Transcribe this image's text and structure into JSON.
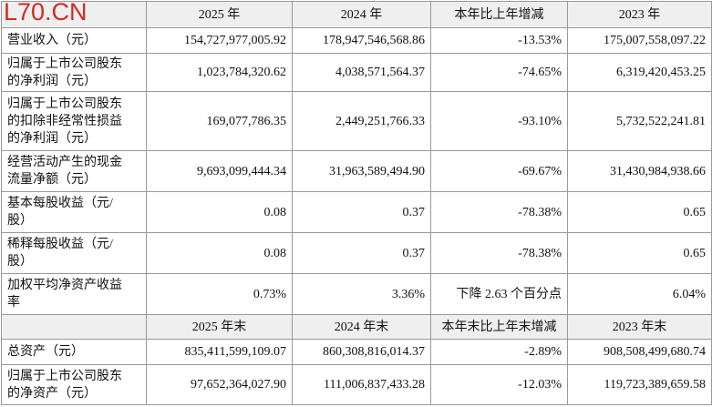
{
  "watermark": "L70.CN",
  "table": {
    "header": [
      "2025 年",
      "2024 年",
      "本年比上年增减",
      "2023 年"
    ],
    "rows": [
      {
        "label": [
          "营业收入（元）"
        ],
        "cells": [
          "154,727,977,005.92",
          "178,947,546,568.86",
          "-13.53%",
          "175,007,558,097.22"
        ]
      },
      {
        "label": [
          "归属于上市公司股东",
          "的净利润（元）"
        ],
        "cells": [
          "1,023,784,320.62",
          "4,038,571,564.37",
          "-74.65%",
          "6,319,420,453.25"
        ]
      },
      {
        "label": [
          "归属于上市公司股东",
          "的扣除非经常性损益",
          "的净利润（元）"
        ],
        "cells": [
          "169,077,786.35",
          "2,449,251,766.33",
          "-93.10%",
          "5,732,522,241.81"
        ]
      },
      {
        "label": [
          "经营活动产生的现金",
          "流量净额（元）"
        ],
        "cells": [
          "9,693,099,444.34",
          "31,963,589,494.90",
          "-69.67%",
          "31,430,984,938.66"
        ]
      },
      {
        "label": [
          "基本每股收益（元/",
          "股）"
        ],
        "cells": [
          "0.08",
          "0.37",
          "-78.38%",
          "0.65"
        ]
      },
      {
        "label": [
          "稀释每股收益（元/",
          "股）"
        ],
        "cells": [
          "0.08",
          "0.37",
          "-78.38%",
          "0.65"
        ]
      },
      {
        "label": [
          "加权平均净资产收益",
          "率"
        ],
        "cells": [
          "0.73%",
          "3.36%",
          "下降 2.63 个百分点",
          "6.04%"
        ]
      }
    ],
    "header2": [
      "2025 年末",
      "2024 年末",
      "本年末比上年末增减",
      "2023 年末"
    ],
    "rows2": [
      {
        "label": [
          "总资产（元）"
        ],
        "cells": [
          "835,411,599,109.07",
          "860,308,816,014.37",
          "-2.89%",
          "908,508,499,680.74"
        ]
      },
      {
        "label": [
          "归属于上市公司股东",
          "的净资产（元）"
        ],
        "cells": [
          "97,652,364,027.90",
          "111,006,837,433.28",
          "-12.03%",
          "119,723,389,659.58"
        ]
      }
    ]
  }
}
